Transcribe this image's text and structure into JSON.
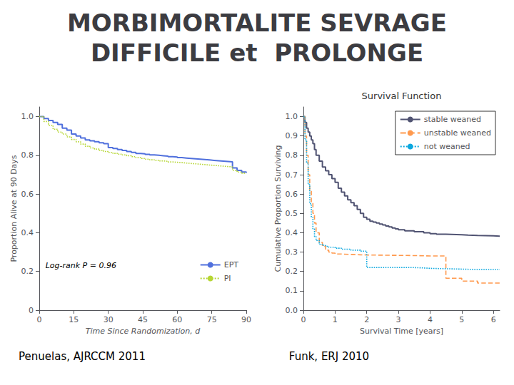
{
  "title": "MORBIMORTALITE SEVRAGE\nDIFFICILE et  PROLONGE",
  "chart_data": [
    {
      "type": "step",
      "xlabel": "Time Since Randomization, d",
      "ylabel": "Proportion Alive at 90 Days",
      "annotation": "Log-rank P = 0.96",
      "source": "Penuelas, AJRCCM 2011",
      "xlim": [
        0,
        90
      ],
      "ylim": [
        0,
        1.05
      ],
      "xticks": [
        0,
        15,
        30,
        45,
        60,
        75,
        90
      ],
      "yticks": [
        0,
        0.2,
        0.4,
        0.6,
        0.8,
        {
          "value": 1.0,
          "label": "1.0"
        }
      ],
      "grid": false,
      "legend": "lower right",
      "x": [
        0,
        2,
        4,
        6,
        8,
        10,
        12,
        14,
        16,
        18,
        20,
        22,
        24,
        26,
        28,
        30,
        32,
        34,
        36,
        38,
        40,
        42,
        44,
        46,
        48,
        50,
        52,
        54,
        56,
        58,
        60,
        62,
        64,
        66,
        68,
        70,
        72,
        74,
        76,
        78,
        80,
        82,
        84,
        86,
        88,
        90
      ],
      "series": [
        {
          "name": "EPT",
          "line_style": "solid",
          "values": [
            1.0,
            0.99,
            0.98,
            0.97,
            0.96,
            0.94,
            0.93,
            0.91,
            0.9,
            0.89,
            0.88,
            0.875,
            0.87,
            0.865,
            0.86,
            0.84,
            0.835,
            0.83,
            0.825,
            0.82,
            0.815,
            0.81,
            0.808,
            0.805,
            0.802,
            0.8,
            0.798,
            0.796,
            0.793,
            0.791,
            0.788,
            0.786,
            0.784,
            0.782,
            0.78,
            0.778,
            0.776,
            0.774,
            0.772,
            0.77,
            0.768,
            0.766,
            0.735,
            0.722,
            0.714,
            0.71
          ]
        },
        {
          "name": "PI",
          "line_style": "dotted",
          "values": [
            1.0,
            0.975,
            0.955,
            0.935,
            0.92,
            0.91,
            0.895,
            0.882,
            0.87,
            0.858,
            0.847,
            0.838,
            0.832,
            0.825,
            0.82,
            0.815,
            0.81,
            0.806,
            0.802,
            0.798,
            0.793,
            0.788,
            0.784,
            0.78,
            0.777,
            0.774,
            0.771,
            0.769,
            0.766,
            0.764,
            0.762,
            0.76,
            0.758,
            0.756,
            0.754,
            0.752,
            0.75,
            0.748,
            0.746,
            0.744,
            0.742,
            0.74,
            0.722,
            0.714,
            0.708,
            0.706
          ]
        }
      ]
    },
    {
      "type": "step",
      "title": "Survival Function",
      "xlabel": "Survival Time [years]",
      "ylabel": "Cumulative Proportion Surviving",
      "source": "Funk, ERJ 2010",
      "xlim": [
        0,
        6.2
      ],
      "ylim": [
        0.0,
        1.05
      ],
      "xticks": [
        0,
        1,
        2,
        3,
        4,
        5,
        6
      ],
      "yticks": [
        {
          "value": 0.0,
          "label": "0.0"
        },
        0.1,
        0.2,
        0.3,
        0.4,
        0.5,
        0.6,
        0.7,
        0.8,
        0.9,
        {
          "value": 1.0,
          "label": "1.0"
        }
      ],
      "grid": false,
      "legend": "upper right",
      "series": [
        {
          "name": "stable weaned",
          "line_style": "solid",
          "x": [
            0,
            0.05,
            0.1,
            0.15,
            0.2,
            0.25,
            0.3,
            0.35,
            0.4,
            0.5,
            0.6,
            0.7,
            0.8,
            0.9,
            1.0,
            1.1,
            1.2,
            1.3,
            1.4,
            1.5,
            1.6,
            1.7,
            1.8,
            1.9,
            2.0,
            2.1,
            2.2,
            2.3,
            2.4,
            2.5,
            2.6,
            2.7,
            2.8,
            2.9,
            3.0,
            3.2,
            3.5,
            3.8,
            4.0,
            4.2,
            4.5,
            5.0,
            5.2,
            5.5,
            6.0,
            6.2
          ],
          "values": [
            1.0,
            0.97,
            0.94,
            0.92,
            0.9,
            0.88,
            0.86,
            0.83,
            0.8,
            0.77,
            0.74,
            0.72,
            0.7,
            0.68,
            0.66,
            0.63,
            0.61,
            0.59,
            0.57,
            0.555,
            0.54,
            0.52,
            0.5,
            0.48,
            0.47,
            0.46,
            0.455,
            0.45,
            0.445,
            0.44,
            0.435,
            0.43,
            0.425,
            0.42,
            0.415,
            0.41,
            0.405,
            0.4,
            0.395,
            0.392,
            0.39,
            0.388,
            0.386,
            0.384,
            0.382,
            0.38
          ]
        },
        {
          "name": "unstable weaned",
          "line_style": "dashed",
          "x": [
            0,
            0.05,
            0.1,
            0.15,
            0.2,
            0.25,
            0.3,
            0.35,
            0.4,
            0.5,
            0.6,
            0.7,
            0.8,
            0.9,
            1.0,
            1.2,
            1.5,
            1.8,
            2.0,
            2.5,
            3.0,
            3.5,
            3.8,
            4.0,
            4.5,
            5.0,
            5.5,
            6.0,
            6.2
          ],
          "values": [
            1.0,
            0.9,
            0.8,
            0.7,
            0.62,
            0.56,
            0.5,
            0.45,
            0.4,
            0.35,
            0.33,
            0.31,
            0.3,
            0.295,
            0.29,
            0.288,
            0.286,
            0.285,
            0.284,
            0.283,
            0.282,
            0.281,
            0.28,
            0.28,
            0.165,
            0.15,
            0.14,
            0.14,
            0.14
          ]
        },
        {
          "name": "not weaned",
          "line_style": "dotted",
          "x": [
            0,
            0.05,
            0.1,
            0.15,
            0.2,
            0.25,
            0.3,
            0.35,
            0.4,
            0.5,
            0.6,
            0.7,
            0.8,
            1.0,
            1.2,
            1.5,
            1.8,
            2.0,
            2.5,
            3.0,
            3.5,
            3.8,
            4.0,
            4.5,
            5.0,
            5.5,
            6.0,
            6.2
          ],
          "values": [
            1.0,
            0.88,
            0.76,
            0.65,
            0.55,
            0.48,
            0.42,
            0.38,
            0.36,
            0.34,
            0.335,
            0.33,
            0.325,
            0.32,
            0.315,
            0.31,
            0.305,
            0.22,
            0.22,
            0.22,
            0.218,
            0.216,
            0.214,
            0.212,
            0.21,
            0.21,
            0.21,
            0.21
          ]
        }
      ]
    }
  ]
}
